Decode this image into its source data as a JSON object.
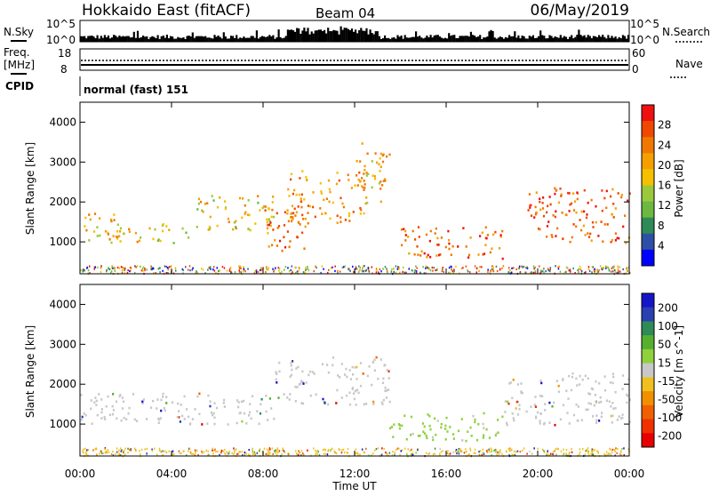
{
  "header": {
    "title": "Hokkaido East (fitACF)",
    "beam": "Beam 04",
    "date": "06/May/2019"
  },
  "status": {
    "nsky_label": "N.Sky",
    "nsky_ticks": [
      "10^5",
      "10^0"
    ],
    "nsearch_label": "N.Search",
    "nsearch_ticks": [
      "10^5",
      "10^0"
    ],
    "freq_label": "Freq.",
    "freq_unit": "[MHz]",
    "freq_ticks": [
      "18",
      "8"
    ],
    "nave_label": "Nave",
    "nave_ticks": [
      "60",
      "0"
    ],
    "cpid_label": "CPID",
    "cpid_text": "normal (fast) 151"
  },
  "colors": {
    "power_scale": [
      "#0000ff",
      "#2e4fa6",
      "#2e8b57",
      "#6cb840",
      "#9bc93c",
      "#f5c000",
      "#f5a000",
      "#f07800",
      "#f04800",
      "#f01010"
    ],
    "velocity_scale": [
      "#1515c8",
      "#2a3fb0",
      "#2e8b57",
      "#55b030",
      "#8fd13c",
      "#c8c8c8",
      "#f0c020",
      "#f09000",
      "#f06000",
      "#f03000",
      "#e80000"
    ],
    "ground_scatter": "#c8c8c8"
  },
  "chart_data": [
    {
      "type": "heatmap",
      "name": "power",
      "xlabel": "",
      "ylabel": "Slant Range [km]",
      "xlim_hours": [
        0,
        24
      ],
      "ylim_km": [
        200,
        4500
      ],
      "yticks": [
        "1000",
        "2000",
        "3000",
        "4000"
      ],
      "colorbar_label": "Power [dB]",
      "colorbar_ticks": [
        "4",
        "8",
        "12",
        "16",
        "20",
        "24",
        "28"
      ],
      "colorbar_range": [
        0,
        32
      ],
      "regions_note_hours_km_level": [
        {
          "t0": 0.0,
          "t1": 1.5,
          "r0": 1000,
          "r1": 1800,
          "level": 20
        },
        {
          "t0": 1.5,
          "t1": 5.0,
          "r0": 1000,
          "r1": 1500,
          "level": 18
        },
        {
          "t0": 5.0,
          "t1": 8.5,
          "r0": 1300,
          "r1": 2200,
          "level": 18
        },
        {
          "t0": 8.0,
          "t1": 10.0,
          "r0": 800,
          "r1": 2000,
          "level": 24
        },
        {
          "t0": 9.0,
          "t1": 12.5,
          "r0": 1500,
          "r1": 2800,
          "level": 22
        },
        {
          "t0": 12.0,
          "t1": 13.5,
          "r0": 2000,
          "r1": 3500,
          "level": 20
        },
        {
          "t0": 14.0,
          "t1": 18.5,
          "r0": 600,
          "r1": 1400,
          "level": 26
        },
        {
          "t0": 19.5,
          "t1": 24.0,
          "r0": 1000,
          "r1": 2400,
          "level": 26
        }
      ]
    },
    {
      "type": "heatmap",
      "name": "velocity",
      "xlabel": "Time UT",
      "ylabel": "Slant Range [km]",
      "xlim_hours": [
        0,
        24
      ],
      "ylim_km": [
        200,
        4500
      ],
      "xticks": [
        "00:00",
        "04:00",
        "08:00",
        "12:00",
        "16:00",
        "20:00",
        "00:00"
      ],
      "yticks": [
        "1000",
        "2000",
        "3000",
        "4000"
      ],
      "colorbar_label": "Velocity [m s^-1]",
      "colorbar_ticks": [
        "200",
        "100",
        "50",
        "15",
        "-15",
        "-50",
        "-100",
        "-200"
      ],
      "regions_note_hours_km_velocity": [
        {
          "t0": 0.0,
          "t1": 8.5,
          "r0": 1000,
          "r1": 1800,
          "v": 0
        },
        {
          "t0": 8.5,
          "t1": 13.5,
          "r0": 1500,
          "r1": 2700,
          "v": 0
        },
        {
          "t0": 13.5,
          "t1": 18.5,
          "r0": 600,
          "r1": 1300,
          "v": 40
        },
        {
          "t0": 18.5,
          "t1": 24.0,
          "r0": 1000,
          "r1": 2300,
          "v": 0
        }
      ]
    }
  ]
}
